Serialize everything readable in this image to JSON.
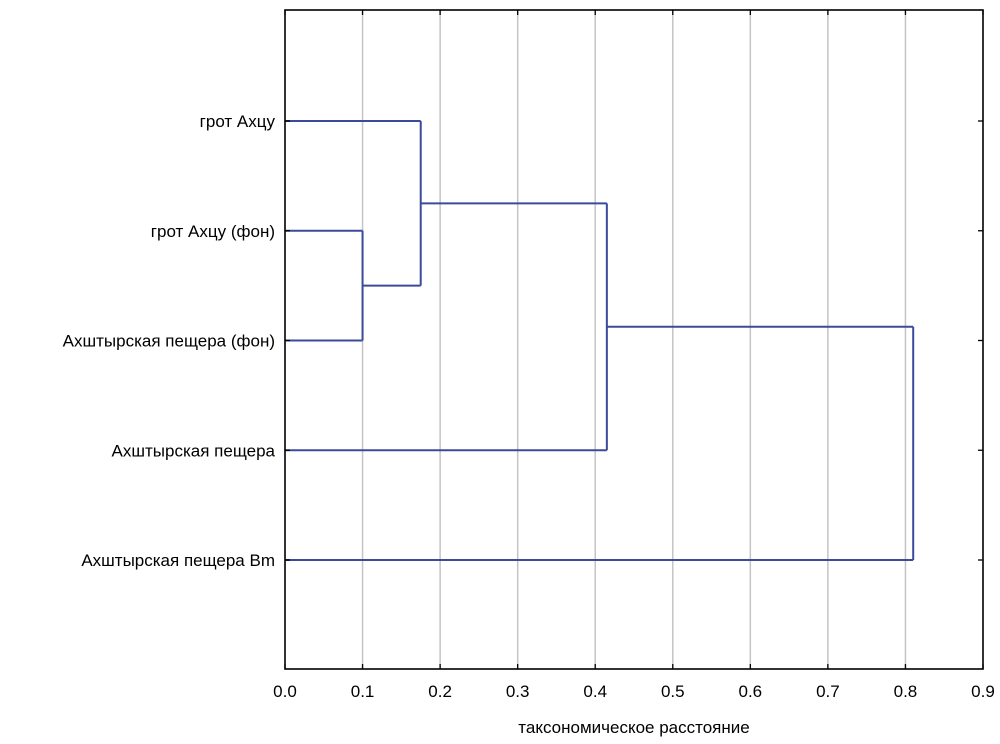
{
  "chart_data": {
    "type": "dendrogram",
    "title": "",
    "xlabel": "таксономическое расстояние",
    "ylabel": "",
    "xlim": [
      0.0,
      0.9
    ],
    "x_ticks": [
      "0.0",
      "0.1",
      "0.2",
      "0.3",
      "0.4",
      "0.5",
      "0.6",
      "0.7",
      "0.8",
      "0.9"
    ],
    "grid": "vertical",
    "line_color": "#3b4a9a",
    "leaves": [
      "грот Ахцу",
      "грот Ахцу (фон)",
      "Ахштырская пещера (фон)",
      "Ахштырская пещера",
      "Ахштырская пещера Вm"
    ],
    "merges": [
      {
        "id": "c1",
        "left": "грот Ахцу (фон)",
        "right": "Ахштырская пещера (фон)",
        "distance": 0.1
      },
      {
        "id": "c2",
        "left": "грот Ахцу",
        "right": "c1",
        "distance": 0.175
      },
      {
        "id": "c3",
        "left": "c2",
        "right": "Ахштырская пещера",
        "distance": 0.415
      },
      {
        "id": "c4",
        "left": "c3",
        "right": "Ахштырская пещера Вm",
        "distance": 0.81
      }
    ]
  }
}
